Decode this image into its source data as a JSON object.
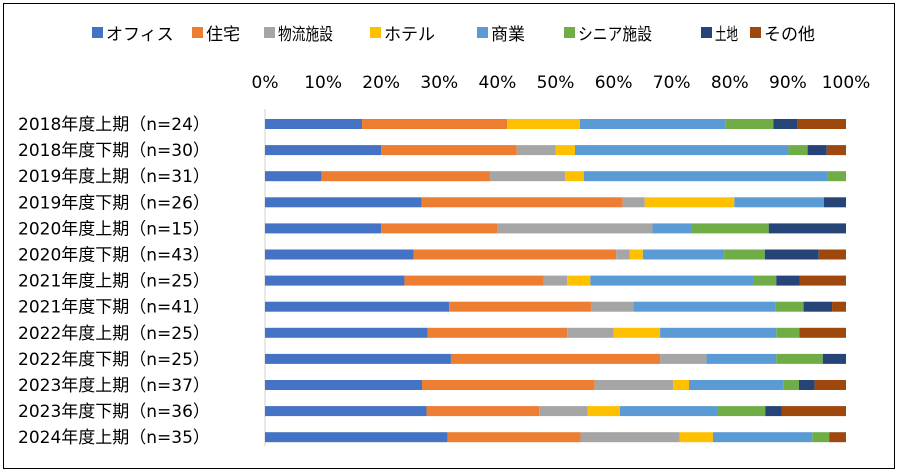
{
  "chart_data": {
    "type": "bar",
    "orientation": "horizontal",
    "stacked": "percent",
    "title": "",
    "xlabel": "",
    "ylabel": "",
    "xlim": [
      0,
      100
    ],
    "x_ticks": [
      "0%",
      "10%",
      "20%",
      "30%",
      "40%",
      "50%",
      "60%",
      "70%",
      "80%",
      "90%",
      "100%"
    ],
    "legend_position": "top",
    "grid": false,
    "categories": [
      "2018年度上期（n=24）",
      "2018年度下期（n=30）",
      "2019年度上期（n=31）",
      "2019年度下期（n=26）",
      "2020年度上期（n=15）",
      "2020年度下期（n=43）",
      "2021年度上期（n=25）",
      "2021年度下期（n=41）",
      "2022年度上期（n=25）",
      "2022年度下期（n=25）",
      "2023年度上期（n=37）",
      "2023年度下期（n=36）",
      "2024年度上期（n=35）"
    ],
    "series": [
      {
        "name": "オフィス",
        "color": "#4472C4",
        "values": [
          16.7,
          20.0,
          9.7,
          26.9,
          20.0,
          25.6,
          24.0,
          31.7,
          28.0,
          32.0,
          27.0,
          27.8,
          31.4
        ]
      },
      {
        "name": "住宅",
        "color": "#ED7D31",
        "values": [
          25.0,
          23.3,
          29.0,
          34.6,
          20.0,
          34.9,
          24.0,
          24.4,
          24.0,
          36.0,
          29.7,
          19.4,
          22.9
        ]
      },
      {
        "name": "物流施設",
        "color": "#A5A5A5",
        "values": [
          0.0,
          6.7,
          12.9,
          3.8,
          26.7,
          2.3,
          4.0,
          7.3,
          8.0,
          8.0,
          13.5,
          8.3,
          17.1
        ]
      },
      {
        "name": "ホテル",
        "color": "#FFC000",
        "values": [
          12.5,
          3.3,
          3.2,
          15.4,
          0.0,
          2.3,
          4.0,
          0.0,
          8.0,
          0.0,
          2.7,
          5.6,
          5.7
        ]
      },
      {
        "name": "商業",
        "color": "#5B9BD5",
        "values": [
          25.0,
          36.7,
          41.9,
          15.4,
          6.7,
          14.0,
          28.0,
          24.4,
          20.0,
          12.0,
          16.2,
          16.7,
          17.1
        ]
      },
      {
        "name": "シニア施設",
        "color": "#70AD47",
        "values": [
          8.3,
          3.3,
          3.2,
          0.0,
          13.3,
          7.0,
          4.0,
          4.9,
          4.0,
          8.0,
          2.7,
          8.3,
          2.9
        ]
      },
      {
        "name": "土地",
        "color": "#264478",
        "values": [
          4.2,
          3.3,
          0.0,
          3.8,
          13.3,
          9.3,
          4.0,
          4.9,
          0.0,
          4.0,
          2.7,
          2.8,
          0.0
        ]
      },
      {
        "name": "その他",
        "color": "#9E480E",
        "values": [
          8.3,
          3.3,
          0.0,
          0.0,
          0.0,
          4.7,
          8.0,
          2.4,
          8.0,
          0.0,
          5.4,
          11.1,
          2.9
        ]
      }
    ]
  }
}
